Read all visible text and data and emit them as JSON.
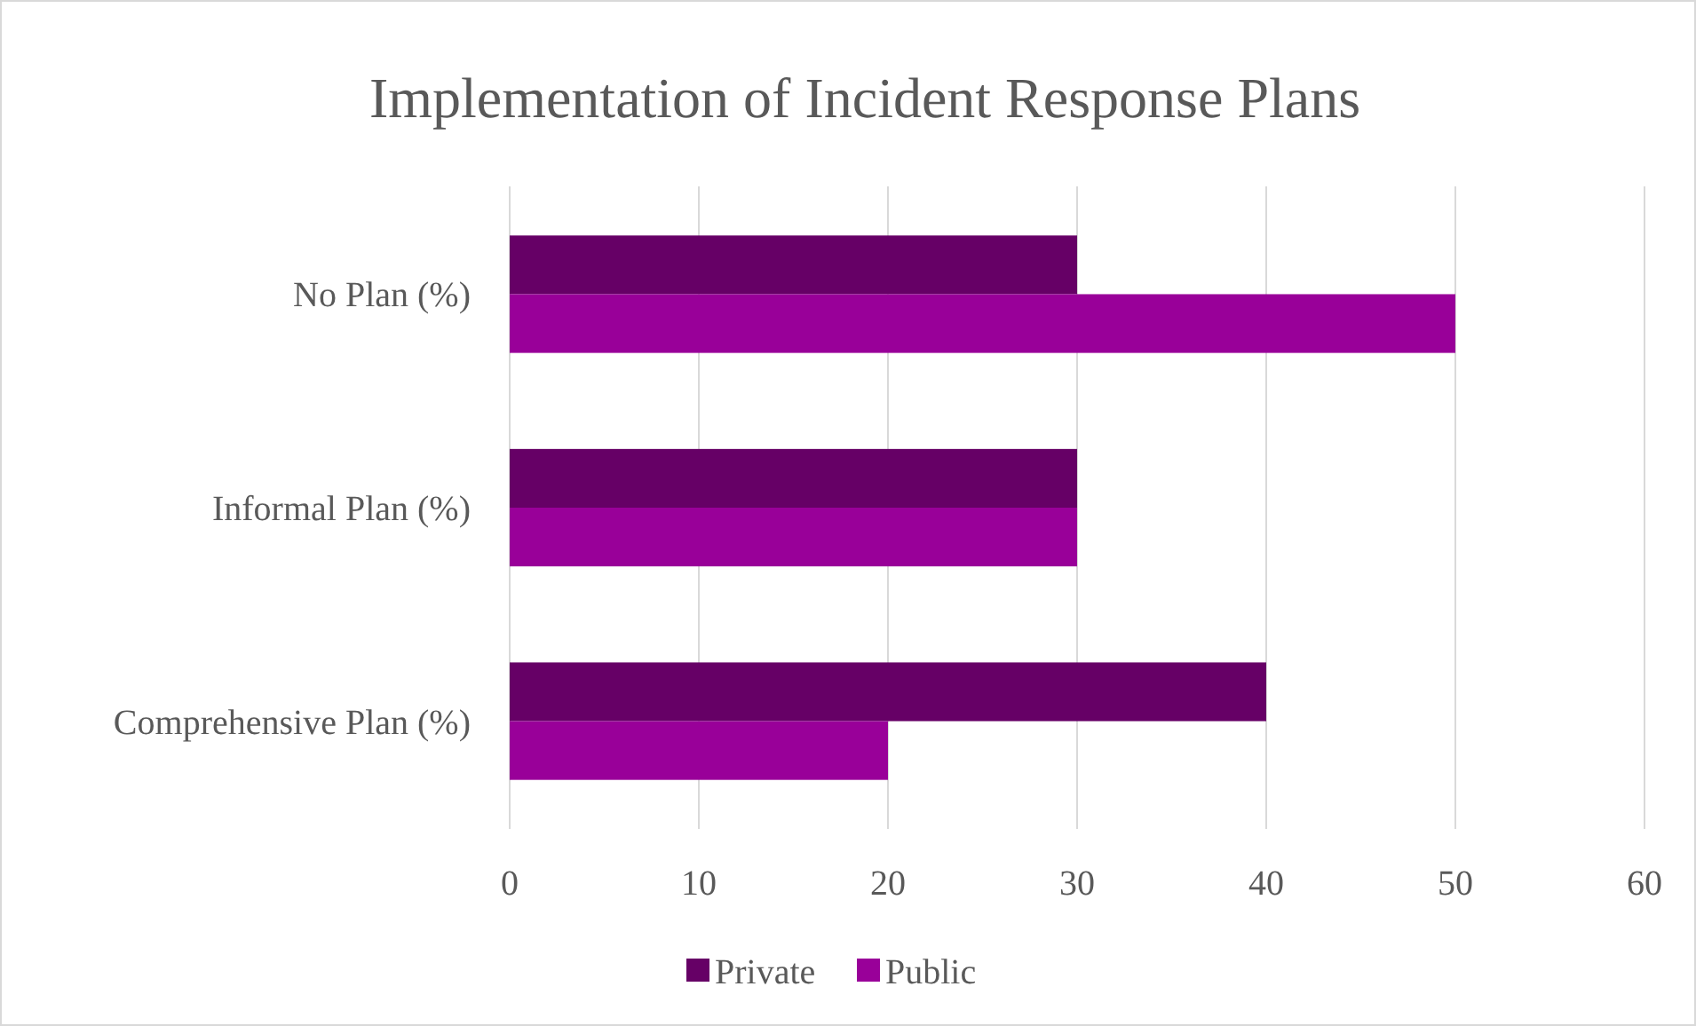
{
  "chart_data": {
    "type": "bar",
    "orientation": "horizontal",
    "title": "Implementation of Incident Response Plans",
    "categories": [
      "No Plan (%)",
      "Informal Plan (%)",
      "Comprehensive Plan (%)"
    ],
    "series": [
      {
        "name": "Private",
        "color": "#660066",
        "values": [
          30,
          30,
          40
        ]
      },
      {
        "name": "Public",
        "color": "#990099",
        "values": [
          50,
          30,
          20
        ]
      }
    ],
    "xlim": [
      0,
      60
    ],
    "xticks": [
      0,
      10,
      20,
      30,
      40,
      50,
      60
    ],
    "grid": "x",
    "legend": "bottom"
  }
}
